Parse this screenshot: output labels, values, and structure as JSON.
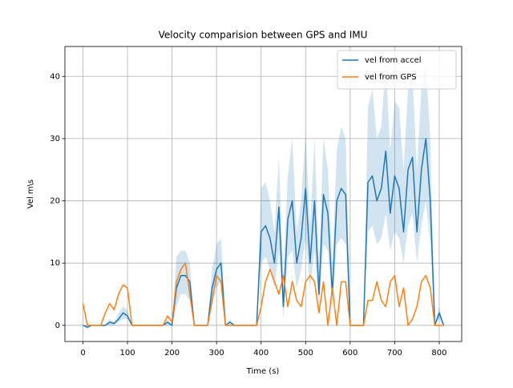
{
  "chart_data": {
    "type": "line",
    "title": "Velocity comparision between GPS and IMU",
    "x_label": "Time (s)",
    "y_label": "Vel m\\s",
    "x": [
      0,
      10,
      20,
      30,
      40,
      50,
      60,
      70,
      80,
      90,
      100,
      110,
      120,
      130,
      140,
      150,
      160,
      170,
      180,
      190,
      200,
      210,
      220,
      230,
      240,
      250,
      260,
      270,
      280,
      290,
      300,
      310,
      320,
      330,
      340,
      350,
      360,
      370,
      380,
      390,
      400,
      410,
      420,
      430,
      440,
      450,
      460,
      470,
      480,
      490,
      500,
      510,
      520,
      530,
      540,
      550,
      560,
      570,
      580,
      590,
      600,
      610,
      620,
      630,
      640,
      650,
      660,
      670,
      680,
      690,
      700,
      710,
      720,
      730,
      740,
      750,
      760,
      770,
      780,
      790,
      800,
      810
    ],
    "series": [
      {
        "name": "vel from accel",
        "color": "#1f77b4",
        "band_color": "#1f77b4",
        "values": [
          0,
          -0.3,
          0,
          0,
          0,
          0,
          0.5,
          0.3,
          1,
          2,
          1.5,
          0,
          0,
          0,
          0,
          0,
          0,
          0,
          0,
          0.5,
          0,
          6,
          8,
          8,
          7,
          0,
          0,
          0,
          0,
          6,
          9,
          10,
          0,
          0.5,
          0,
          0,
          0,
          0,
          0,
          0,
          15,
          16,
          14,
          10,
          19,
          3,
          17,
          20,
          10,
          14,
          22,
          10,
          20,
          5,
          21,
          18,
          5,
          20,
          22,
          21,
          0,
          0,
          0,
          0,
          23,
          24,
          20,
          22,
          28,
          18,
          24,
          22,
          15,
          25,
          27,
          15,
          25,
          30,
          20,
          0,
          2,
          0
        ],
        "band_lower": [
          0,
          -0.5,
          0,
          0,
          0,
          0,
          0,
          0,
          0.5,
          1,
          1,
          0,
          0,
          0,
          0,
          0,
          0,
          0,
          0,
          0,
          0,
          3,
          5,
          5,
          4,
          0,
          0,
          0,
          0,
          3,
          6,
          7,
          0,
          0,
          0,
          0,
          0,
          0,
          0,
          0,
          10,
          11,
          9,
          6,
          12,
          1,
          11,
          12,
          6,
          9,
          14,
          6,
          12,
          3,
          13,
          12,
          3,
          13,
          14,
          13,
          0,
          0,
          0,
          0,
          15,
          16,
          13,
          14,
          18,
          12,
          15,
          14,
          10,
          16,
          18,
          10,
          16,
          20,
          13,
          0,
          1,
          0
        ],
        "band_upper": [
          0,
          0,
          0,
          0,
          0,
          0,
          1,
          0.5,
          2,
          3,
          2.5,
          0,
          0,
          0,
          0,
          0,
          0,
          0,
          0,
          1,
          0,
          11,
          12,
          12,
          10,
          0,
          0,
          0,
          0,
          9,
          13,
          14,
          0,
          1,
          0,
          0,
          0,
          0,
          0,
          0,
          22,
          23,
          20,
          15,
          27,
          8,
          24,
          30,
          15,
          20,
          31,
          16,
          30,
          10,
          30,
          25,
          10,
          28,
          32,
          30,
          0,
          0,
          0,
          0,
          35,
          38,
          30,
          32,
          42,
          28,
          36,
          35,
          25,
          38,
          40,
          25,
          38,
          42,
          30,
          0,
          3,
          0
        ]
      },
      {
        "name": "vel from GPS",
        "color": "#ff7f0e",
        "values": [
          3.5,
          0,
          0,
          0,
          0,
          2,
          3.5,
          2.5,
          5,
          6.5,
          6,
          0,
          0,
          0,
          0,
          0,
          0,
          0,
          0,
          1.5,
          0.5,
          7,
          9,
          10,
          5,
          0,
          0,
          0,
          0,
          4,
          8,
          7,
          0,
          0,
          0,
          0,
          0,
          0,
          0,
          0,
          3,
          7,
          9,
          7,
          5,
          8,
          3,
          7,
          4,
          3,
          7,
          8,
          7,
          2,
          7,
          0,
          6,
          0,
          7,
          7,
          0,
          0,
          0,
          0,
          4,
          4,
          7,
          4,
          3,
          7,
          8,
          3,
          6,
          0,
          1,
          3,
          7,
          8,
          6,
          0,
          0,
          0
        ]
      }
    ],
    "xlim": [
      -40.5,
      850.5
    ],
    "ylim": [
      -2.6,
      44.8
    ],
    "xticks": [
      0,
      100,
      200,
      300,
      400,
      500,
      600,
      700,
      800
    ],
    "yticks": [
      0,
      10,
      20,
      30,
      40
    ],
    "grid": true,
    "legend": "upper right"
  }
}
